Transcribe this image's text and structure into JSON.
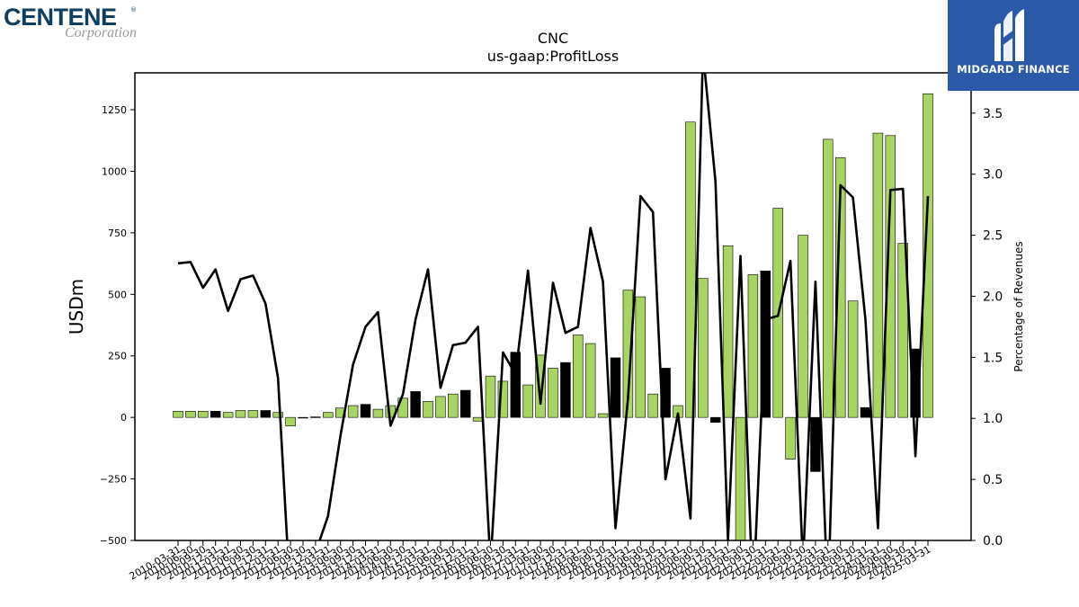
{
  "logos": {
    "left_brand": "CENTENE",
    "left_registered": "®",
    "left_sub": "Corporation",
    "right_text": "MIDGARD FINANCE"
  },
  "colors": {
    "bar_green": "#a8d464",
    "bar_black": "#000000",
    "line": "#000000",
    "logo_blue": "#2d5aa8",
    "logo_navy": "#0f3e63"
  },
  "chart_data": {
    "type": "bar",
    "title": "CNC",
    "subtitle": "us-gaap:ProfitLoss",
    "ylabel": "USDm",
    "y2label": "Percentage of Revenues",
    "ylim": [
      -500,
      1400
    ],
    "y2lim": [
      0.0,
      3.83
    ],
    "yticks": [
      -500,
      -250,
      0,
      250,
      500,
      750,
      1000,
      1250
    ],
    "yticklabels": [
      "−500",
      "−250",
      "0",
      "250",
      "500",
      "750",
      "1000",
      "1250"
    ],
    "y2ticks": [
      0.0,
      0.5,
      1.0,
      1.5,
      2.0,
      2.5,
      3.0,
      3.5
    ],
    "y2ticklabels": [
      "0.0",
      "0.5",
      "1.0",
      "1.5",
      "2.0",
      "2.5",
      "3.0",
      "3.5"
    ],
    "xticklabels": [
      "2010-03-31",
      "2010-06-30",
      "2010-09-30",
      "2010-12-31",
      "2011-03-31",
      "2011-06-30",
      "2011-09-30",
      "2011-12-31",
      "2012-03-31",
      "2012-06-30",
      "2012-09-30",
      "2012-12-31",
      "2013-03-31",
      "2013-06-30",
      "2013-09-30",
      "2013-12-31",
      "2014-03-31",
      "2014-06-30",
      "2014-09-30",
      "2014-12-31",
      "2015-03-31",
      "2015-06-30",
      "2015-09-30",
      "2015-12-31",
      "2016-03-31",
      "2016-06-30",
      "2016-09-30",
      "2016-12-31",
      "2017-03-31",
      "2017-06-30",
      "2017-09-30",
      "2017-12-31",
      "2018-03-31",
      "2018-06-30",
      "2018-09-30",
      "2018-12-31",
      "2019-03-31",
      "2019-06-30",
      "2019-09-30",
      "2019-12-31",
      "2020-03-31",
      "2020-06-30",
      "2020-09-30",
      "2020-12-31",
      "2021-03-31",
      "2021-06-30",
      "2021-09-30",
      "2021-12-31",
      "2022-03-31",
      "2022-06-30",
      "2022-09-30",
      "2022-12-31",
      "2023-03-31",
      "2023-06-30",
      "2023-09-30",
      "2023-12-31",
      "2024-03-31",
      "2024-06-30",
      "2024-09-30",
      "2024-12-31",
      "2025-03-31"
    ],
    "series": [
      {
        "kind": "bar",
        "values": [
          25,
          25,
          25,
          25,
          20,
          28,
          28,
          28,
          20,
          -35,
          -3,
          2,
          20,
          38,
          48,
          53,
          33,
          48,
          78,
          105,
          65,
          85,
          95,
          110,
          -15,
          168,
          147,
          265,
          132,
          253,
          200,
          223,
          335,
          300,
          15,
          242,
          517,
          490,
          95,
          200,
          48,
          1200,
          565,
          -20,
          697,
          -500,
          580,
          595,
          850,
          -170,
          740,
          -220,
          1130,
          1055,
          473,
          40,
          1155,
          1145,
          707,
          278,
          1315
        ],
        "colors": [
          "g",
          "g",
          "g",
          "b",
          "g",
          "g",
          "g",
          "b",
          "g",
          "g",
          "b",
          "b",
          "g",
          "g",
          "g",
          "b",
          "g",
          "g",
          "g",
          "b",
          "g",
          "g",
          "g",
          "b",
          "g",
          "g",
          "g",
          "b",
          "g",
          "g",
          "g",
          "b",
          "g",
          "g",
          "g",
          "b",
          "g",
          "g",
          "g",
          "b",
          "g",
          "g",
          "g",
          "b",
          "g",
          "g",
          "g",
          "b",
          "g",
          "g",
          "g",
          "b",
          "g",
          "g",
          "g",
          "b",
          "g",
          "g",
          "g",
          "b",
          "g"
        ]
      },
      {
        "kind": "line",
        "axis": "right",
        "values": [
          2.27,
          2.28,
          2.07,
          2.22,
          1.88,
          2.14,
          2.17,
          1.94,
          1.33,
          -0.5,
          -0.5,
          -0.1,
          0.2,
          0.86,
          1.44,
          1.75,
          1.87,
          0.94,
          1.2,
          1.81,
          2.22,
          1.25,
          1.6,
          1.62,
          1.75,
          -0.2,
          1.54,
          1.36,
          2.21,
          1.12,
          2.11,
          1.7,
          1.75,
          2.56,
          2.12,
          0.1,
          1.16,
          2.82,
          2.69,
          0.5,
          1.04,
          0.18,
          4.0,
          2.94,
          0.0,
          2.33,
          -0.5,
          1.81,
          1.84,
          2.29,
          -0.2,
          2.12,
          -0.5,
          2.91,
          2.81,
          1.81,
          0.1,
          2.87,
          2.88,
          0.69,
          2.82
        ]
      }
    ]
  }
}
